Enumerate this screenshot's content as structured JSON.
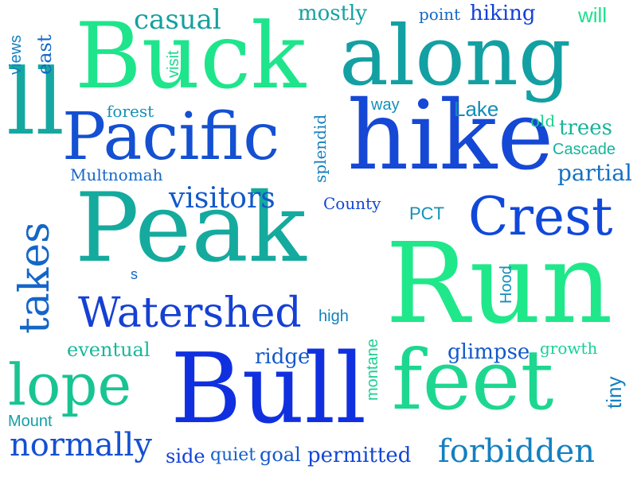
{
  "words": [
    {
      "text": "Run",
      "color": "#1fe88a"
    },
    {
      "text": "Peak",
      "color": "#15aa9e"
    },
    {
      "text": "Bull",
      "color": "#1030e0"
    },
    {
      "text": "Buck",
      "color": "#1ee58c"
    },
    {
      "text": "along",
      "color": "#13a0a2"
    },
    {
      "text": "hike",
      "color": "#1648d6"
    },
    {
      "text": "feet",
      "color": "#1dd790"
    },
    {
      "text": "Pacific",
      "color": "#1450d2"
    },
    {
      "text": "Crest",
      "color": "#1048da"
    },
    {
      "text": "ll",
      "color": "#15a8a0"
    },
    {
      "text": "Watershed",
      "color": "#1540d4"
    },
    {
      "text": "lope",
      "color": "#18c492"
    },
    {
      "text": "takes",
      "color": "#1466c8"
    },
    {
      "text": "normally",
      "color": "#1450d2"
    },
    {
      "text": "forbidden",
      "color": "#1480c0"
    },
    {
      "text": "visitors",
      "color": "#1258cc"
    },
    {
      "text": "casual",
      "color": "#15a0a0"
    },
    {
      "text": "permitted",
      "color": "#1346d6"
    },
    {
      "text": "glimpse",
      "color": "#1258cc"
    },
    {
      "text": "partial",
      "color": "#1470c4"
    },
    {
      "text": "trees",
      "color": "#16b49a"
    },
    {
      "text": "mostly",
      "color": "#14a2a2"
    },
    {
      "text": "hiking",
      "color": "#1340d8"
    },
    {
      "text": "ridge",
      "color": "#1358cc"
    },
    {
      "text": "Lake",
      "color": "#148cb8"
    },
    {
      "text": "eventual",
      "color": "#16b89a"
    },
    {
      "text": "quiet",
      "color": "#1460ca"
    },
    {
      "text": "goal",
      "color": "#1458cc"
    },
    {
      "text": "side",
      "color": "#1240d8"
    },
    {
      "text": "growth",
      "color": "#18d096"
    },
    {
      "text": "Cascade",
      "color": "#17b49a"
    },
    {
      "text": "Multnomah",
      "color": "#1468c8"
    },
    {
      "text": "County",
      "color": "#1346d6"
    },
    {
      "text": "PCT",
      "color": "#1490b8"
    },
    {
      "text": "Mount",
      "color": "#14a0a4"
    },
    {
      "text": "high",
      "color": "#1480be"
    },
    {
      "text": "point",
      "color": "#1468c6"
    },
    {
      "text": "will",
      "color": "#1ce08c"
    },
    {
      "text": "old",
      "color": "#18d090"
    },
    {
      "text": "forest",
      "color": "#1490b4"
    },
    {
      "text": "way",
      "color": "#1490b8"
    },
    {
      "text": "east",
      "color": "#1468c8"
    },
    {
      "text": "views",
      "color": "#1480c0"
    },
    {
      "text": "visit",
      "color": "#1ad88e"
    },
    {
      "text": "splendid",
      "color": "#1480be"
    },
    {
      "text": "Hood",
      "color": "#148cb8"
    },
    {
      "text": "montane",
      "color": "#1ad090"
    },
    {
      "text": "tiny",
      "color": "#1480c0"
    },
    {
      "text": "s",
      "color": "#1468c8"
    }
  ]
}
